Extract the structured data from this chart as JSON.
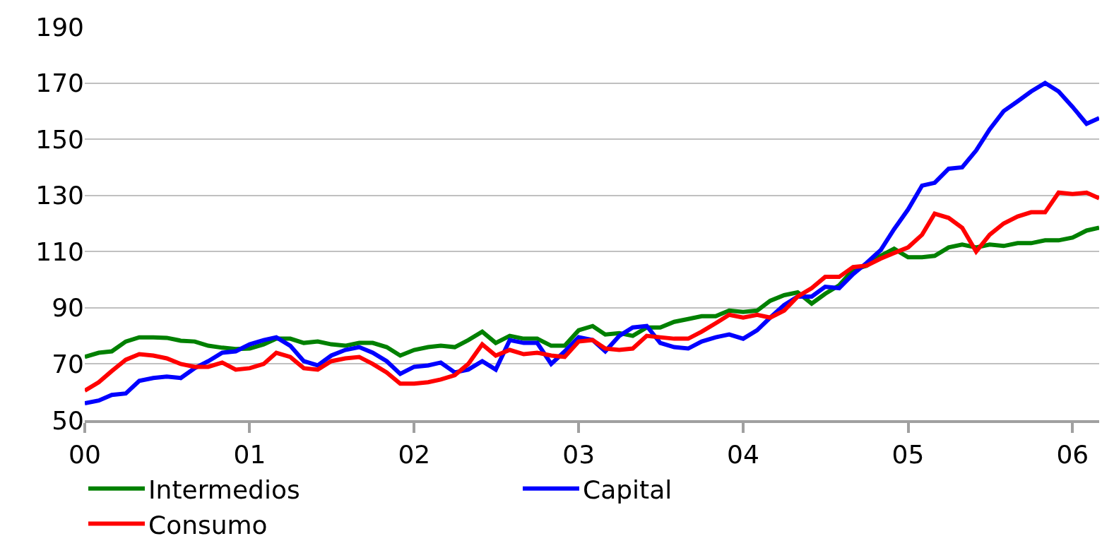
{
  "chart_data": {
    "type": "line",
    "x": [
      "2000-01",
      "2000-02",
      "2000-03",
      "2000-04",
      "2000-05",
      "2000-06",
      "2000-07",
      "2000-08",
      "2000-09",
      "2000-10",
      "2000-11",
      "2000-12",
      "2001-01",
      "2001-02",
      "2001-03",
      "2001-04",
      "2001-05",
      "2001-06",
      "2001-07",
      "2001-08",
      "2001-09",
      "2001-10",
      "2001-11",
      "2001-12",
      "2002-01",
      "2002-02",
      "2002-03",
      "2002-04",
      "2002-05",
      "2002-06",
      "2002-07",
      "2002-08",
      "2002-09",
      "2002-10",
      "2002-11",
      "2002-12",
      "2003-01",
      "2003-02",
      "2003-03",
      "2003-04",
      "2003-05",
      "2003-06",
      "2003-07",
      "2003-08",
      "2003-09",
      "2003-10",
      "2003-11",
      "2003-12",
      "2004-01",
      "2004-02",
      "2004-03",
      "2004-04",
      "2004-05",
      "2004-06",
      "2004-07",
      "2004-08",
      "2004-09",
      "2004-10",
      "2004-11",
      "2004-12",
      "2005-01",
      "2005-02",
      "2005-03",
      "2005-04",
      "2005-05",
      "2005-06",
      "2005-07",
      "2005-08",
      "2005-09",
      "2005-10",
      "2005-11",
      "2005-12",
      "2006-01",
      "2006-02",
      "2006-03"
    ],
    "series": [
      {
        "name": "Intermedios",
        "color": "#008000",
        "values": [
          72.5,
          74,
          74.5,
          78,
          79.5,
          79.5,
          79.3,
          78.3,
          78,
          76.5,
          75.8,
          75.3,
          75.5,
          77,
          79,
          79,
          77.5,
          78,
          77,
          76.5,
          77.5,
          77.5,
          76,
          73,
          75,
          76,
          76.5,
          76,
          78.5,
          81.5,
          77.5,
          80,
          79,
          79,
          76.5,
          76.5,
          82,
          83.5,
          80.5,
          81,
          80,
          83,
          83,
          85,
          86,
          87,
          87,
          89,
          88.5,
          89,
          92.5,
          94.5,
          95.5,
          91.5,
          95,
          98,
          103.5,
          105,
          108.5,
          111,
          108,
          108,
          108.5,
          111.5,
          112.5,
          111.5,
          112.5,
          112,
          113,
          113,
          114,
          114,
          115,
          117.5,
          118.5
        ]
      },
      {
        "name": "Capital",
        "color": "#0000ff",
        "values": [
          56,
          57,
          59,
          59.5,
          64,
          65,
          65.5,
          65,
          68.5,
          71,
          74,
          74.5,
          77,
          78.5,
          79.5,
          76.5,
          71,
          69.5,
          73,
          75,
          76,
          74,
          71,
          66.5,
          69,
          69.5,
          70.5,
          67,
          68,
          71,
          68,
          78.5,
          77.5,
          77.5,
          70,
          74.5,
          79.5,
          78.5,
          74.5,
          80,
          83,
          83.5,
          77.5,
          76,
          75.5,
          78,
          79.5,
          80.5,
          79,
          82,
          86.5,
          91,
          94,
          94,
          97.5,
          97,
          102,
          106,
          110.5,
          118,
          125,
          133.5,
          134.5,
          139.5,
          140,
          146,
          153.5,
          160,
          163.5,
          167,
          170,
          167,
          161.5,
          155.5,
          157.5
        ]
      },
      {
        "name": "Consumo",
        "color": "#ff0000",
        "values": [
          60.5,
          63.5,
          67.5,
          71.5,
          73.5,
          73,
          72,
          70,
          69,
          69,
          70.5,
          68,
          68.5,
          70,
          74,
          72.5,
          68.5,
          68,
          71,
          72,
          72.5,
          70,
          67,
          63,
          63,
          63.5,
          64.5,
          66,
          70,
          77,
          73,
          75,
          73.5,
          74,
          73,
          72.5,
          78,
          78.5,
          75.5,
          75,
          75.5,
          80,
          79.5,
          79,
          79,
          81.5,
          84.5,
          87.5,
          86.5,
          87.5,
          86.5,
          89,
          94,
          97,
          101,
          101,
          104.5,
          105,
          107.5,
          109.5,
          111.5,
          116,
          123.5,
          122,
          118.5,
          110,
          116,
          120,
          122.5,
          124,
          124,
          131,
          130.5,
          131,
          129
        ]
      }
    ],
    "xlim": [
      "2000-01",
      "2006-03"
    ],
    "xticks": [
      {
        "value": "2000-01",
        "label": "00"
      },
      {
        "value": "2001-01",
        "label": "01"
      },
      {
        "value": "2002-01",
        "label": "02"
      },
      {
        "value": "2003-01",
        "label": "03"
      },
      {
        "value": "2004-01",
        "label": "04"
      },
      {
        "value": "2005-01",
        "label": "05"
      },
      {
        "value": "2006-01",
        "label": "06"
      }
    ],
    "ylim": [
      50,
      190
    ],
    "yticks": [
      50,
      70,
      90,
      110,
      130,
      150,
      170,
      190
    ],
    "grid": "y",
    "legend": "bottom",
    "marker": "none",
    "line_style": "solid"
  }
}
